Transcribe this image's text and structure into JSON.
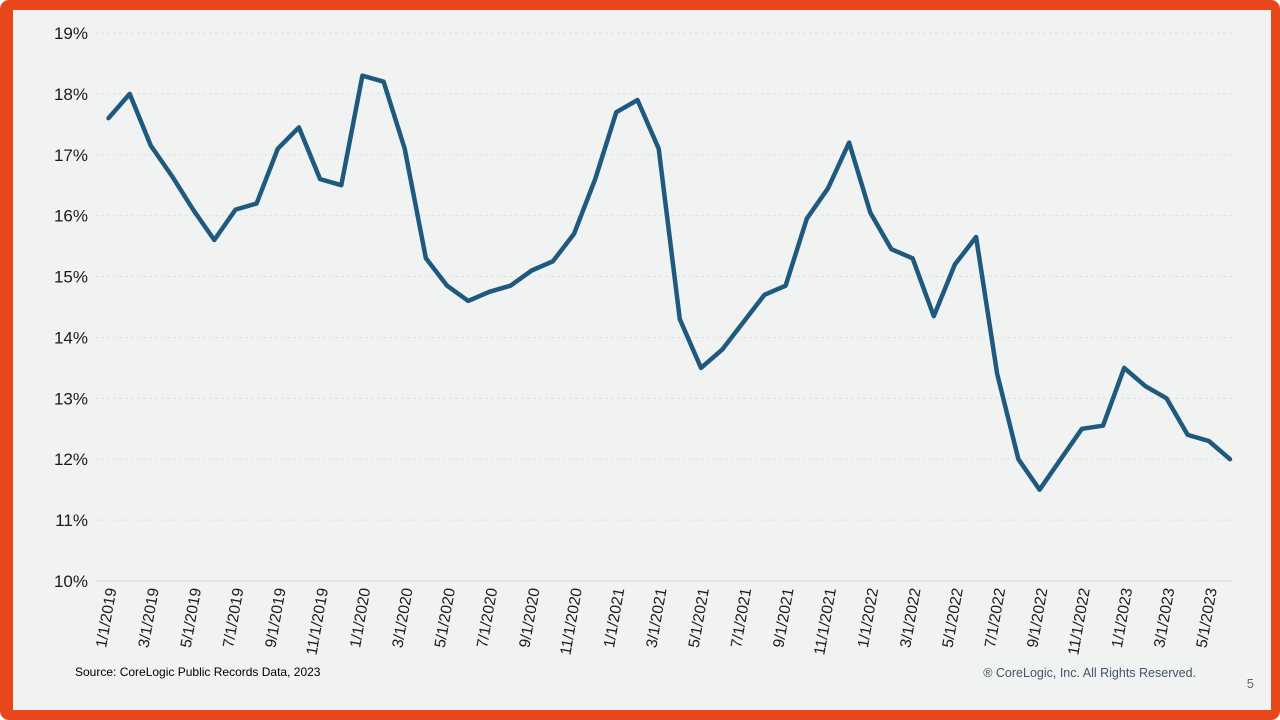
{
  "theme": {
    "frame_color": "#e8461b",
    "background_color": "#f1f2f2",
    "line_color": "#1f5a7e"
  },
  "footer": {
    "source": "Source: CoreLogic Public Records Data, 2023",
    "copyright": "® CoreLogic, Inc. All Rights Reserved.",
    "page_number": "5"
  },
  "chart_data": {
    "type": "line",
    "title": "",
    "xlabel": "",
    "ylabel": "",
    "y_unit": "%",
    "ylim": [
      10,
      19
    ],
    "y_ticks": [
      10,
      11,
      12,
      13,
      14,
      15,
      16,
      17,
      18,
      19
    ],
    "grid": "horizontal-dashed",
    "legend": "none",
    "x": [
      "1/1/2019",
      "2/1/2019",
      "3/1/2019",
      "4/1/2019",
      "5/1/2019",
      "6/1/2019",
      "7/1/2019",
      "8/1/2019",
      "9/1/2019",
      "10/1/2019",
      "11/1/2019",
      "12/1/2019",
      "1/1/2020",
      "2/1/2020",
      "3/1/2020",
      "4/1/2020",
      "5/1/2020",
      "6/1/2020",
      "7/1/2020",
      "8/1/2020",
      "9/1/2020",
      "10/1/2020",
      "11/1/2020",
      "12/1/2020",
      "1/1/2021",
      "2/1/2021",
      "3/1/2021",
      "4/1/2021",
      "5/1/2021",
      "6/1/2021",
      "7/1/2021",
      "8/1/2021",
      "9/1/2021",
      "10/1/2021",
      "11/1/2021",
      "12/1/2021",
      "1/1/2022",
      "2/1/2022",
      "3/1/2022",
      "4/1/2022",
      "5/1/2022",
      "6/1/2022",
      "7/1/2022",
      "8/1/2022",
      "9/1/2022",
      "10/1/2022",
      "11/1/2022",
      "12/1/2022",
      "1/1/2023",
      "2/1/2023",
      "3/1/2023",
      "4/1/2023",
      "5/1/2023",
      "6/1/2023"
    ],
    "x_tick_labels": [
      "1/1/2019",
      "3/1/2019",
      "5/1/2019",
      "7/1/2019",
      "9/1/2019",
      "11/1/2019",
      "1/1/2020",
      "3/1/2020",
      "5/1/2020",
      "7/1/2020",
      "9/1/2020",
      "11/1/2020",
      "1/1/2021",
      "3/1/2021",
      "5/1/2021",
      "7/1/2021",
      "9/1/2021",
      "11/1/2021",
      "1/1/2022",
      "3/1/2022",
      "5/1/2022",
      "7/1/2022",
      "9/1/2022",
      "11/1/2022",
      "1/1/2023",
      "3/1/2023",
      "5/1/2023"
    ],
    "series": [
      {
        "name": "share-percent",
        "values": [
          17.6,
          18.0,
          17.15,
          16.65,
          16.1,
          15.6,
          16.1,
          16.2,
          17.1,
          17.45,
          16.6,
          16.5,
          18.3,
          18.2,
          17.1,
          15.3,
          14.85,
          14.6,
          14.75,
          14.85,
          15.1,
          15.25,
          15.7,
          16.6,
          17.7,
          17.9,
          17.1,
          14.3,
          13.5,
          13.8,
          14.25,
          14.7,
          14.85,
          15.95,
          16.45,
          17.2,
          16.05,
          15.45,
          15.3,
          14.35,
          15.2,
          15.65,
          13.4,
          12.0,
          11.5,
          12.0,
          12.5,
          12.55,
          13.5,
          13.2,
          13.0,
          12.4,
          12.3,
          12.0
        ]
      }
    ]
  }
}
